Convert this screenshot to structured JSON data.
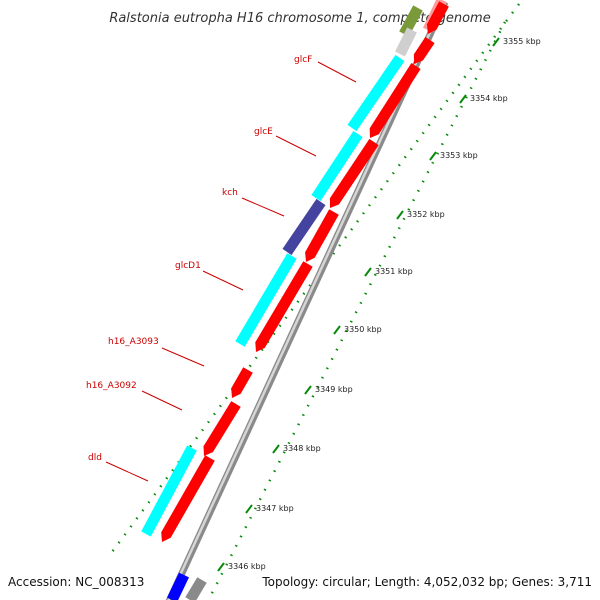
{
  "title": "Ralstonia eutropha H16 chromosome 1, complete genome",
  "accession_text": "Accession: NC_008313",
  "summary_text": "Topology: circular; Length: 4,052,032 bp; Genes: 3,711",
  "colors": {
    "cds": "#ff0000",
    "blast_hit": "#00ffff",
    "blast_hit_dark": "#4444a0",
    "backbone": "#9a9a9a",
    "gc_tick": "#0a8a0a",
    "label_red": "#cc0000",
    "blue_feature": "#0000ff",
    "olive_feature": "#7a9a3a",
    "pink_feature": "#ff9999"
  },
  "kbp_ticks": [
    {
      "label": "3346 kbp"
    },
    {
      "label": "3347 kbp"
    },
    {
      "label": "3348 kbp"
    },
    {
      "label": "3349 kbp"
    },
    {
      "label": "3350 kbp"
    },
    {
      "label": "3351 kbp"
    },
    {
      "label": "3352 kbp"
    },
    {
      "label": "3353 kbp"
    },
    {
      "label": "3354 kbp"
    },
    {
      "label": "3355 kbp"
    }
  ],
  "gene_labels": [
    {
      "name": "glcF"
    },
    {
      "name": "glcE"
    },
    {
      "name": "kch"
    },
    {
      "name": "glcD1"
    },
    {
      "name": "h16_A3093"
    },
    {
      "name": "h16_A3092"
    },
    {
      "name": "dld"
    }
  ]
}
